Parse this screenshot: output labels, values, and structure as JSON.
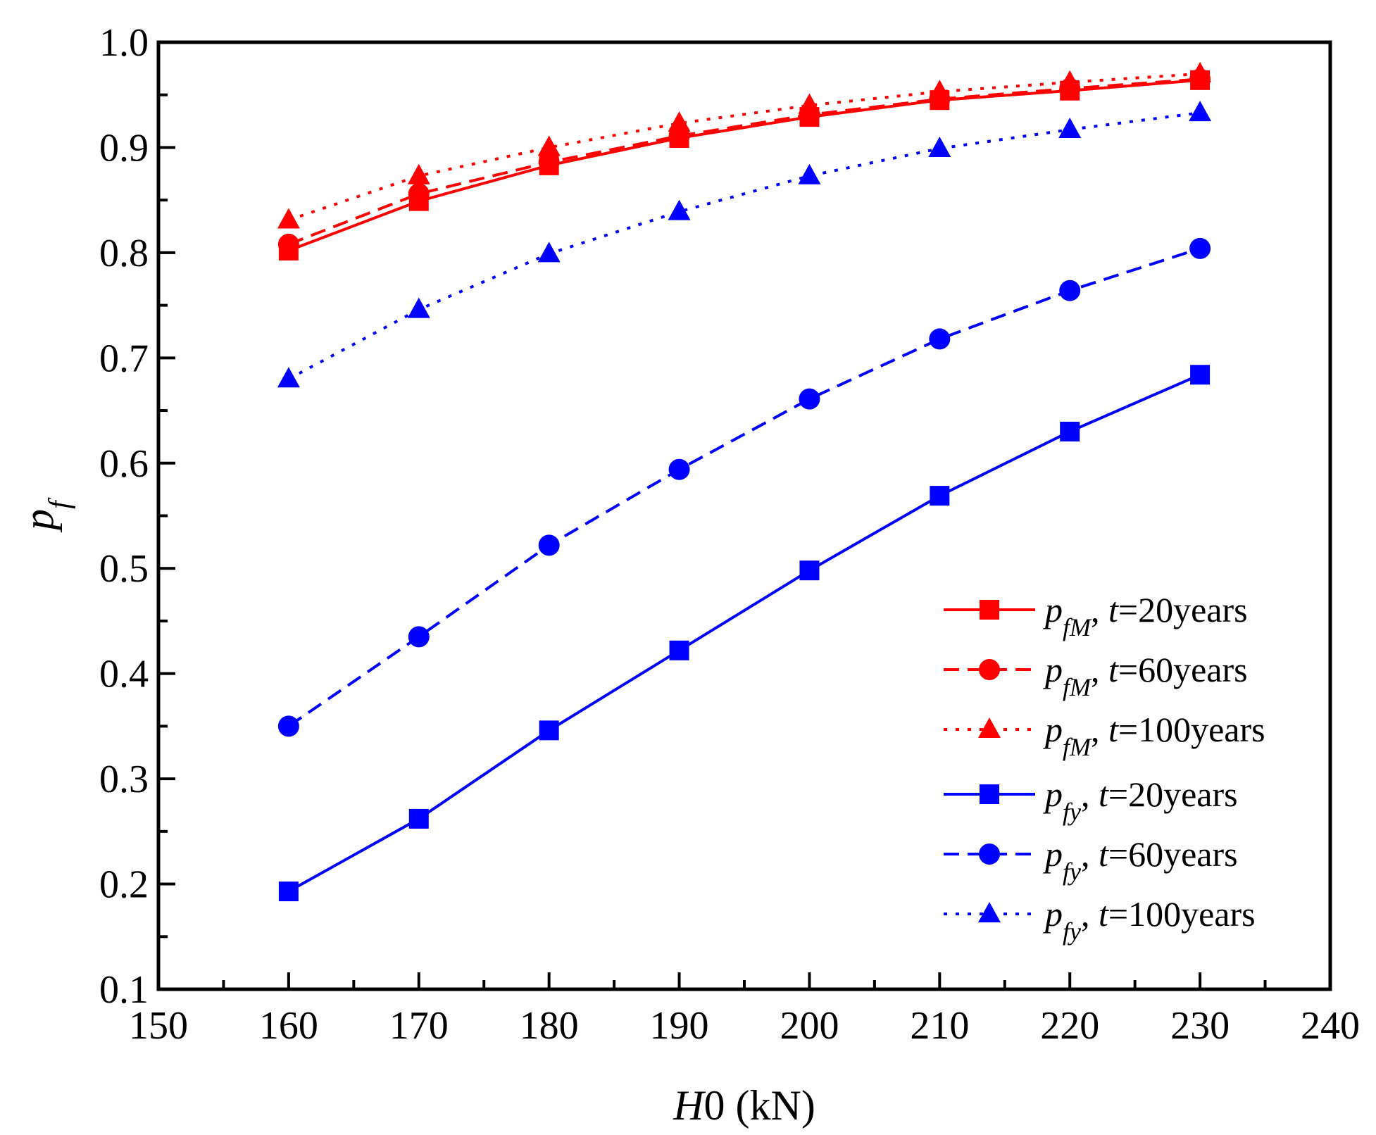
{
  "chart_data": {
    "type": "line",
    "x": [
      160,
      170,
      180,
      190,
      200,
      210,
      220,
      230
    ],
    "xlim": [
      150,
      240
    ],
    "ylim": [
      0.1,
      1.0
    ],
    "xticks": [
      "150",
      "160",
      "170",
      "180",
      "190",
      "200",
      "210",
      "220",
      "230",
      "240"
    ],
    "yticks": [
      "0.1",
      "0.2",
      "0.3",
      "0.4",
      "0.5",
      "0.6",
      "0.7",
      "0.8",
      "0.9",
      "1.0"
    ],
    "xlabel": {
      "italic": "H",
      "rest": "0 (kN)"
    },
    "ylabel": {
      "base": "p",
      "sub": "f"
    },
    "legend_position": "bottom-right",
    "series": [
      {
        "name": "pfM, t=20years",
        "p": "p",
        "sub": "fM",
        "t": "t",
        "rest": "=20years",
        "color": "#ff0000",
        "marker": "square",
        "dash": "solid",
        "values": [
          0.802,
          0.849,
          0.883,
          0.909,
          0.929,
          0.945,
          0.954,
          0.964
        ]
      },
      {
        "name": "pfM, t=60years",
        "p": "p",
        "sub": "fM",
        "t": "t",
        "rest": "=60years",
        "color": "#ff0000",
        "marker": "circle",
        "dash": "dashed",
        "values": [
          0.808,
          0.856,
          0.886,
          0.911,
          0.931,
          0.946,
          0.956,
          0.965
        ]
      },
      {
        "name": "pfM, t=100years",
        "p": "p",
        "sub": "fM",
        "t": "t",
        "rest": "=100years",
        "color": "#ff0000",
        "marker": "triangle",
        "dash": "dotted",
        "values": [
          0.831,
          0.873,
          0.9,
          0.923,
          0.94,
          0.953,
          0.962,
          0.97
        ]
      },
      {
        "name": "pfy, t=20years",
        "p": "p",
        "sub": "fy",
        "t": "t",
        "rest": "=20years",
        "color": "#0000ff",
        "marker": "square",
        "dash": "solid",
        "values": [
          0.193,
          0.262,
          0.346,
          0.422,
          0.498,
          0.569,
          0.63,
          0.684
        ]
      },
      {
        "name": "pfy, t=60years",
        "p": "p",
        "sub": "fy",
        "t": "t",
        "rest": "=60years",
        "color": "#0000ff",
        "marker": "circle",
        "dash": "dashed",
        "values": [
          0.35,
          0.435,
          0.522,
          0.594,
          0.661,
          0.718,
          0.764,
          0.804
        ]
      },
      {
        "name": "pfy, t=100years",
        "p": "p",
        "sub": "fy",
        "t": "t",
        "rest": "=100years",
        "color": "#0000ff",
        "marker": "triangle",
        "dash": "dotted",
        "values": [
          0.68,
          0.746,
          0.799,
          0.839,
          0.873,
          0.899,
          0.917,
          0.933
        ]
      }
    ]
  }
}
